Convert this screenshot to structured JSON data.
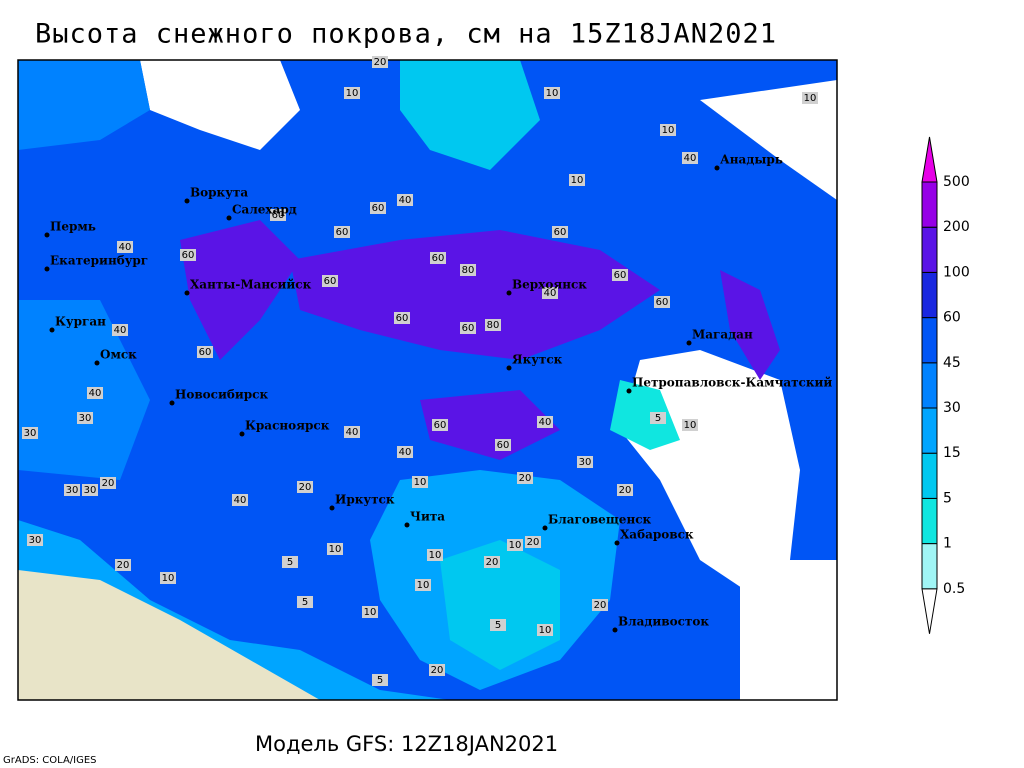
{
  "title": "Высота снежного покрова, см на 15Z18JAN2021",
  "subtitle": "Модель GFS: 12Z18JAN2021",
  "credit": "GrADS: COLA/IGES",
  "cities": [
    "Воркута",
    "Салехард",
    "Пермь",
    "Екатеринбург",
    "Ханты-Мансийск",
    "Курган",
    "Омск",
    "Новосибирск",
    "Красноярск",
    "Иркутск",
    "Чита",
    "Благовещенск",
    "Хабаровск",
    "Владивосток",
    "Якутск",
    "Верхоянск",
    "Магадан",
    "Петропавловск-Камчатский",
    "Анадырь"
  ],
  "contour_labels": [
    "10",
    "10",
    "10",
    "20",
    "10",
    "10",
    "40",
    "40",
    "60",
    "60",
    "60",
    "60",
    "40",
    "60",
    "60",
    "80",
    "60",
    "60",
    "40",
    "60",
    "60",
    "80",
    "60",
    "60",
    "40",
    "40",
    "30",
    "30",
    "40",
    "60",
    "40",
    "60",
    "30",
    "20",
    "20",
    "10",
    "5",
    "40",
    "40",
    "20",
    "10",
    "10",
    "5",
    "10",
    "20",
    "10",
    "20",
    "10",
    "10",
    "5",
    "5",
    "10",
    "20",
    "5",
    "20",
    "10",
    "30",
    "30",
    "20",
    "30",
    "20"
  ],
  "legend": {
    "levels": [
      0.5,
      1,
      5,
      15,
      30,
      45,
      60,
      100,
      200,
      500
    ],
    "colors": [
      "#ffffff",
      "#a0f5f5",
      "#10e6e0",
      "#00c8f0",
      "#00a5ff",
      "#0082ff",
      "#0055f5",
      "#1a28e0",
      "#5a14e6",
      "#9600e6",
      "#e600e6"
    ]
  }
}
